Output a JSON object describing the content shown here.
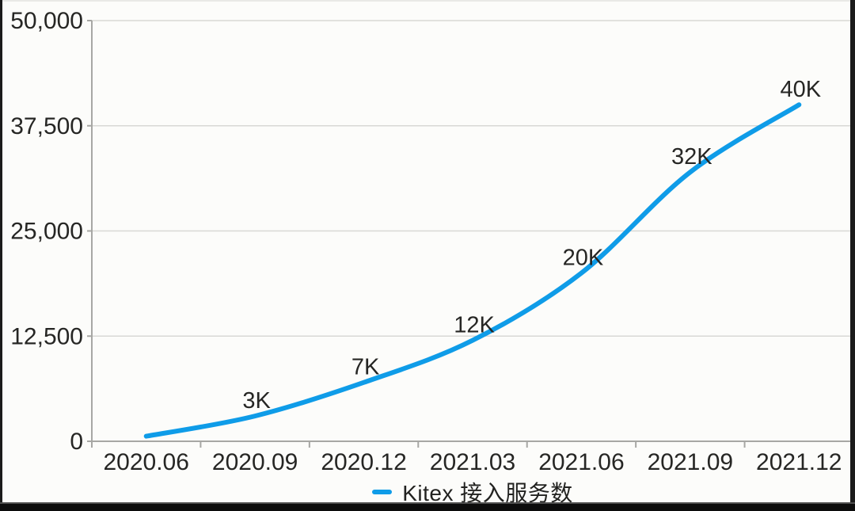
{
  "chart_data": {
    "type": "line",
    "title": "",
    "categories": [
      "2020.06",
      "2020.09",
      "2020.12",
      "2021.03",
      "2021.06",
      "2021.09",
      "2021.12"
    ],
    "series": [
      {
        "name": "Kitex 接入服务数",
        "color": "#0f9ce8",
        "values": [
          600,
          3000,
          7000,
          12000,
          20000,
          32000,
          40000
        ],
        "point_labels": [
          "",
          "3K",
          "7K",
          "12K",
          "20K",
          "32K",
          "40K"
        ]
      }
    ],
    "ylim": [
      0,
      50000
    ],
    "yticks": [
      0,
      12500,
      25000,
      37500,
      50000
    ],
    "ytick_labels": [
      "0",
      "12,500",
      "25,000",
      "37,500",
      "50,000"
    ],
    "grid": true,
    "curve": "smooth",
    "legend_position": "bottom",
    "colors": {
      "line": "#0f9ce8",
      "grid": "#d8d8d5",
      "axis": "#a7a7a4",
      "text": "#262624"
    }
  }
}
